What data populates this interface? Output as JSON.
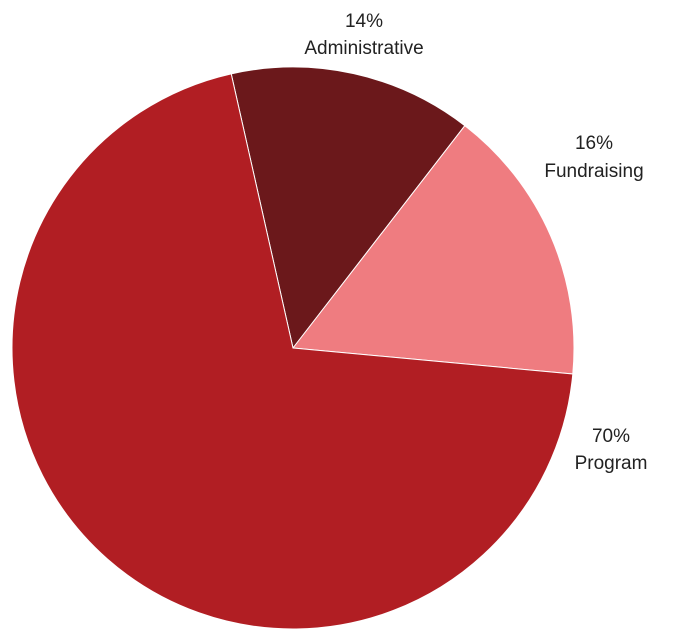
{
  "chart_data": {
    "type": "pie",
    "title": "",
    "slices": [
      {
        "label": "Administrative",
        "value": 14,
        "percent_label": "14%",
        "color": "#6b181b"
      },
      {
        "label": "Fundraising",
        "value": 16,
        "percent_label": "16%",
        "color": "#ef7c80"
      },
      {
        "label": "Program",
        "value": 70,
        "percent_label": "70%",
        "color": "#b11e23"
      }
    ],
    "legend": "none",
    "labels": "outside"
  }
}
